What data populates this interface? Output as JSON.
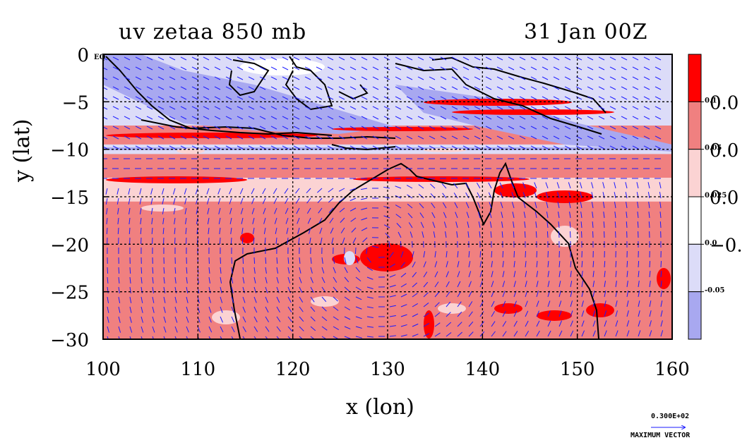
{
  "chart_data": {
    "type": "heatmap",
    "title_left": "uv zetaa 850 mb",
    "title_right": "31 Jan 00Z",
    "xlabel": "x (lon)",
    "ylabel": "y (lat)",
    "x_ticks": [
      "100",
      "110",
      "120",
      "130",
      "140",
      "150",
      "160"
    ],
    "x_tick_values": [
      100,
      110,
      120,
      130,
      140,
      150,
      160
    ],
    "y_ticks": [
      "0",
      "−5",
      "−10",
      "−15",
      "−20",
      "−25",
      "−30"
    ],
    "y_tick_values": [
      0,
      -5,
      -10,
      -15,
      -20,
      -25,
      -30
    ],
    "corner_label": "EQ",
    "xlim": [
      100,
      160
    ],
    "ylim": [
      -30,
      0
    ],
    "grid": true,
    "colorbar": {
      "levels": [
        "0.1",
        "0.05",
        "0.025",
        "0.0",
        "-0.05"
      ],
      "side_labels": [
        "0.0",
        "0.0",
        "0.0",
        "−0."
      ],
      "colors": [
        "#ff0000",
        "#f08080",
        "#fbd3d3",
        "#ffffff",
        "#dcdcf8",
        "#a8a8f0"
      ]
    },
    "max_vector": {
      "value": "0.300E+02",
      "label": "MAXIMUM VECTOR"
    },
    "features": [
      {
        "type": "high_vorticity",
        "lon": 129,
        "lat": -20.5
      },
      {
        "type": "negative_band",
        "lon_range": [
          100,
          160
        ],
        "lat": -10
      },
      {
        "type": "negative_band",
        "lon_range": [
          100,
          160
        ],
        "lat": -6
      }
    ]
  }
}
